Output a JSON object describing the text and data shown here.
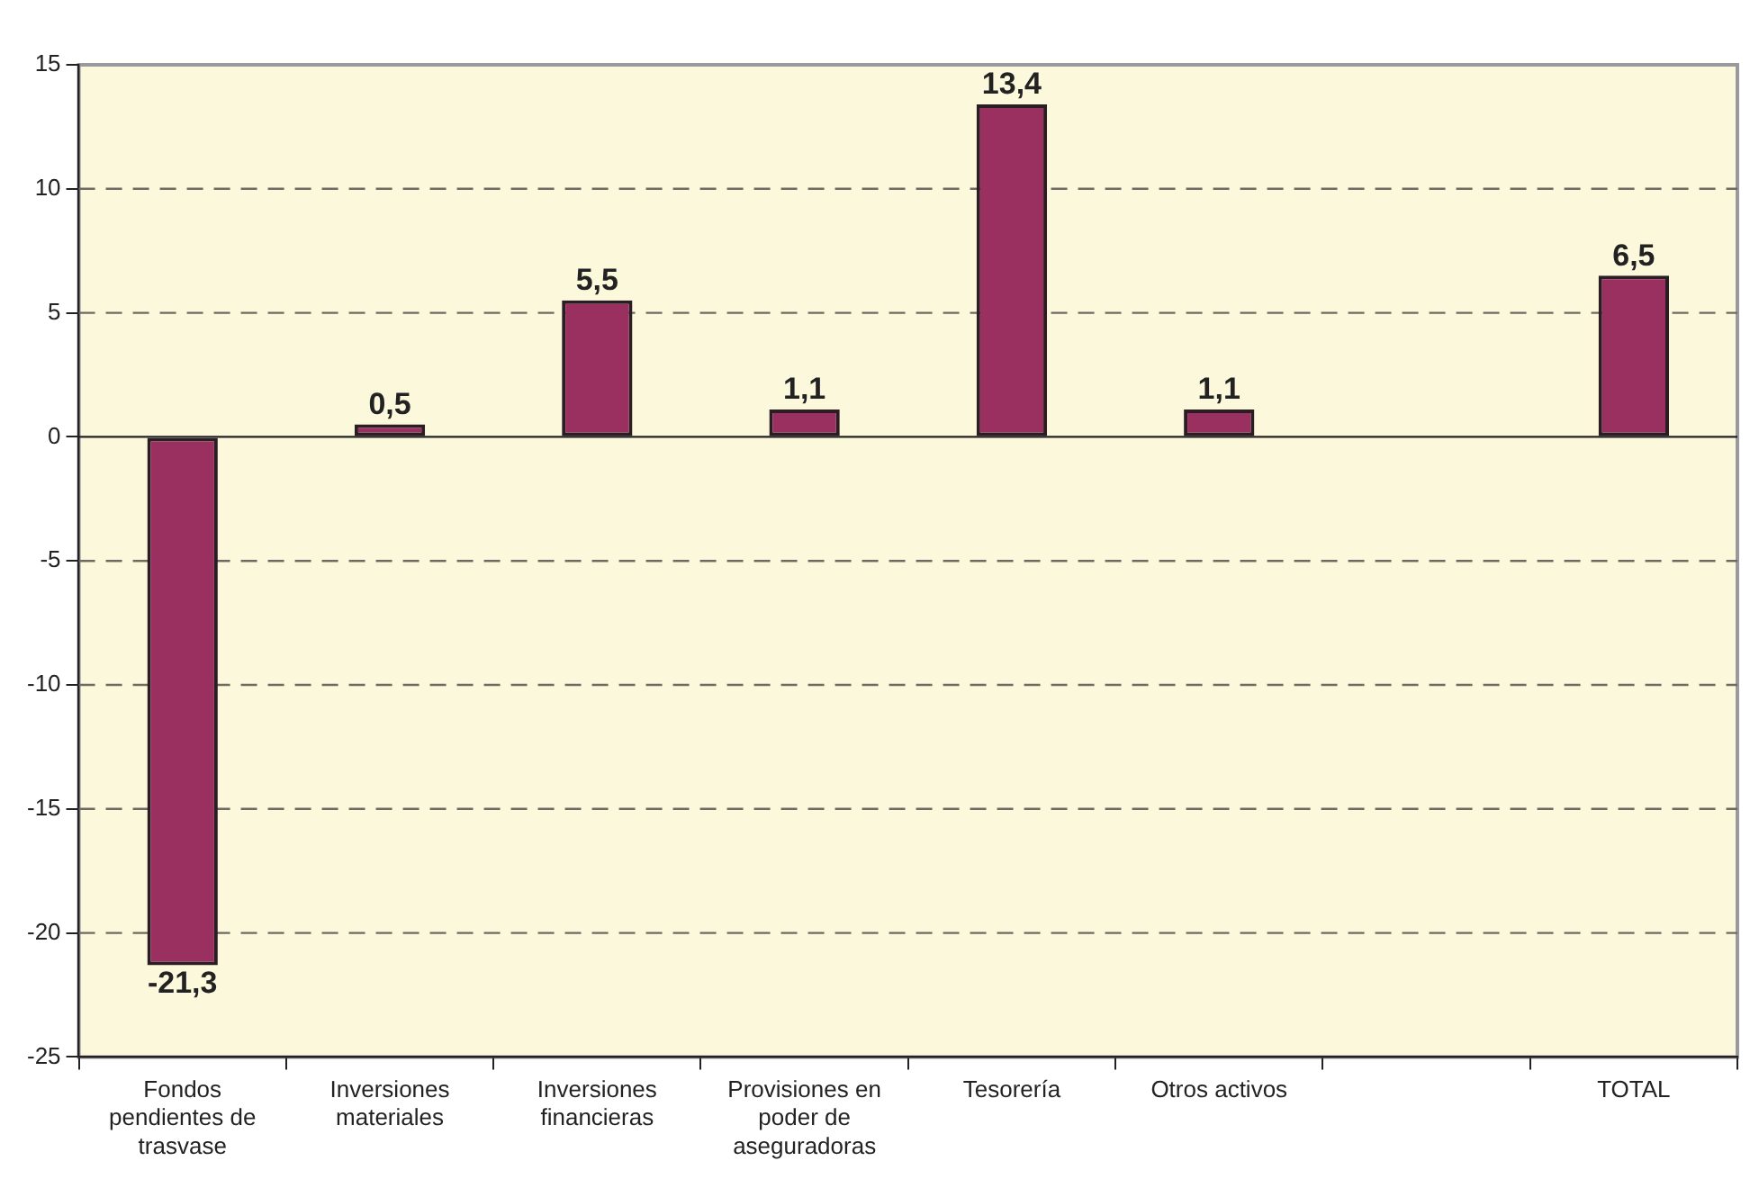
{
  "chart_data": {
    "type": "bar",
    "categories": [
      "Fondos pendientes de trasvase",
      "Inversiones materiales",
      "Inversiones financieras",
      "Provisiones en poder de aseguradoras",
      "Tesorería",
      "Otros activos",
      null,
      "TOTAL"
    ],
    "values": [
      -21.3,
      0.5,
      5.5,
      1.1,
      13.4,
      1.1,
      null,
      6.5
    ],
    "color": "#993060",
    "value_labels": [
      "-21,3",
      "0,5",
      "5,5",
      "1,1",
      "13,4",
      "1,1",
      null,
      "6,5"
    ],
    "ylim": [
      -25,
      15
    ],
    "yticks": [
      -25,
      -20,
      -15,
      -10,
      -5,
      0,
      5,
      10,
      15
    ],
    "grid": "y"
  }
}
